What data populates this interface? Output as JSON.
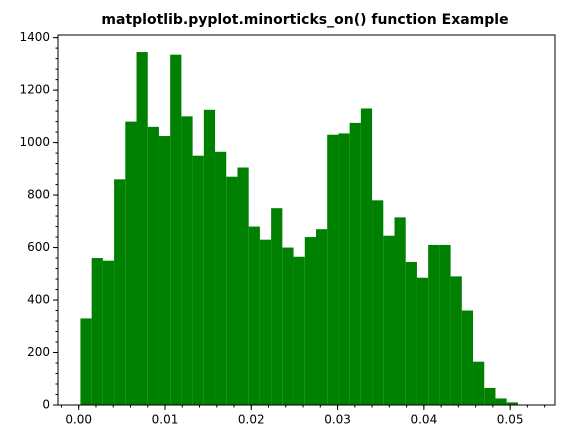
{
  "chart_data": {
    "type": "histogram",
    "title": "matplotlib.pyplot.minorticks_on() function Example",
    "bins": [
      0.0002,
      0.0015,
      0.0028,
      0.0041,
      0.0054,
      0.0067,
      0.008,
      0.0093,
      0.0106,
      0.0119,
      0.0132,
      0.0145,
      0.0158,
      0.0171,
      0.0184,
      0.0197,
      0.021,
      0.0223,
      0.0236,
      0.0249,
      0.0262,
      0.0275,
      0.0288,
      0.0301,
      0.0314,
      0.0327,
      0.034,
      0.0353,
      0.0366,
      0.0379,
      0.0392,
      0.0405,
      0.0418,
      0.0431,
      0.0444,
      0.0457,
      0.047,
      0.0483,
      0.0496,
      0.0509
    ],
    "values": [
      330,
      560,
      550,
      860,
      1080,
      1345,
      1060,
      1025,
      1335,
      1100,
      950,
      1125,
      965,
      870,
      905,
      680,
      630,
      750,
      600,
      565,
      640,
      670,
      1030,
      1035,
      1075,
      1130,
      780,
      645,
      715,
      545,
      485,
      610,
      610,
      490,
      360,
      165,
      65,
      25,
      10
    ],
    "color": "#008000",
    "xlim": [
      -0.0024,
      0.0552
    ],
    "ylim": [
      0,
      1410
    ],
    "xticks": [
      {
        "value": 0,
        "label": "0.00"
      },
      {
        "value": 0.01,
        "label": "0.01"
      },
      {
        "value": 0.02,
        "label": "0.02"
      },
      {
        "value": 0.03,
        "label": "0.03"
      },
      {
        "value": 0.04,
        "label": "0.04"
      },
      {
        "value": 0.05,
        "label": "0.05"
      }
    ],
    "yticks": [
      0,
      200,
      400,
      600,
      800,
      1000,
      1200,
      1400
    ],
    "minor_ticks": true,
    "grid": false
  }
}
